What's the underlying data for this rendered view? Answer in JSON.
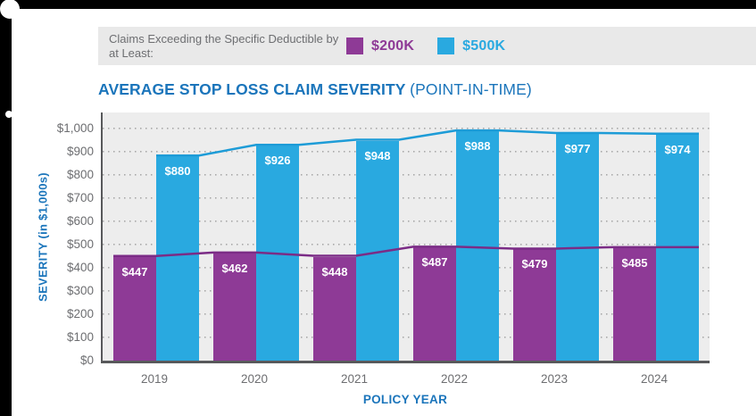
{
  "frame": {
    "color": "#000000",
    "decor": "white-circles"
  },
  "legend": {
    "caption": "Claims Exceeding the Specific Deductible by at Least:",
    "background": "#e9e9e9",
    "items": [
      {
        "label": "$200K",
        "color": "#8e3a96"
      },
      {
        "label": "$500K",
        "color": "#29a9e0"
      }
    ]
  },
  "title": {
    "main": "AVERAGE STOP LOSS CLAIM SEVERITY",
    "suffix": "(POINT-IN-TIME)",
    "color": "#1b75bb"
  },
  "chart_data": {
    "type": "bar",
    "title": "AVERAGE STOP LOSS CLAIM SEVERITY (POINT-IN-TIME)",
    "categories": [
      "2019",
      "2020",
      "2021",
      "2022",
      "2023",
      "2024"
    ],
    "series": [
      {
        "name": "$200K",
        "color": "#8e3a96",
        "line_color": "#7b2c86",
        "values": [
          447,
          462,
          448,
          487,
          479,
          485
        ]
      },
      {
        "name": "$500K",
        "color": "#29a9e0",
        "line_color": "#1e9cd7",
        "values": [
          880,
          926,
          948,
          988,
          977,
          974
        ]
      }
    ],
    "bar_labels": [
      [
        "$447",
        "$462",
        "$448",
        "$487",
        "$479",
        "$485"
      ],
      [
        "$880",
        "$926",
        "$948",
        "$988",
        "$977",
        "$974"
      ]
    ],
    "xlabel": "POLICY YEAR",
    "ylabel": "SEVERITY (in $1,000s)",
    "ylim": [
      0,
      1000
    ],
    "ytick_step": 100,
    "ytick_labels": [
      "$0",
      "$100",
      "$200",
      "$300",
      "$400",
      "$500",
      "$600",
      "$700",
      "$800",
      "$900",
      "$1,000"
    ],
    "grid": "dotted-horizontal",
    "legend_position": "top",
    "overlay": "straight trend line along the tops of each series' bars",
    "value_label_color": "#ffffff",
    "axis_text_color": "#6d6e71",
    "axis_line_color": "#58595b",
    "plot_background": "#ededed"
  }
}
